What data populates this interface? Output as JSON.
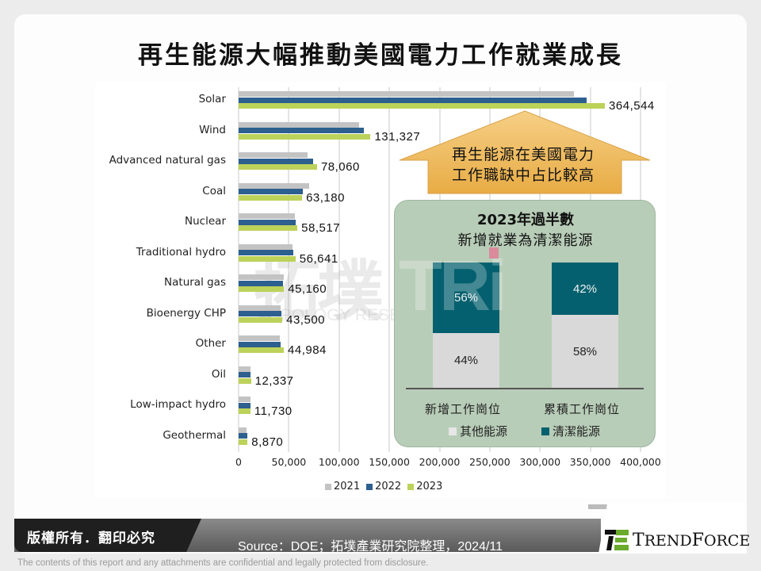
{
  "title": "再生能源大幅推動美國電力工作就業成長",
  "chart_data": [
    {
      "type": "bar",
      "orientation": "horizontal",
      "title": "",
      "xlabel": "",
      "ylabel": "",
      "categories": [
        "Solar",
        "Wind",
        "Advanced natural gas",
        "Coal",
        "Nuclear",
        "Traditional  hydro",
        "Natural gas",
        "Bioenergy CHP",
        "Other",
        "Oil",
        "Low-impact hydro",
        "Geothermal"
      ],
      "series": [
        {
          "name": "2021",
          "color": "#c3c3c3",
          "values": [
            334000,
            120000,
            69000,
            70000,
            56000,
            54000,
            45000,
            42000,
            41000,
            12000,
            12000,
            8000
          ]
        },
        {
          "name": "2022",
          "color": "#2d5f8f",
          "values": [
            346000,
            125000,
            74000,
            64000,
            57000,
            54500,
            44500,
            42500,
            42000,
            12000,
            11500,
            8500
          ]
        },
        {
          "name": "2023",
          "color": "#bcd25a",
          "values": [
            364544,
            131327,
            78060,
            63180,
            58517,
            56641,
            45160,
            43500,
            44984,
            12337,
            11730,
            8870
          ]
        }
      ],
      "data_labels_2023": [
        "364,544",
        "131,327",
        "78,060",
        "63,180",
        "58,517",
        "56,641",
        "45,160",
        "43,500",
        "44,984",
        "12,337",
        "11,730",
        "8,870"
      ],
      "xticks": [
        "0",
        "50,000",
        "100,000",
        "150,000",
        "200,000",
        "250,000",
        "300,000",
        "350,000",
        "400,000"
      ],
      "xlim": [
        0,
        400000
      ],
      "grid": true,
      "legend": [
        "2021",
        "2022",
        "2023"
      ],
      "legend_position": "bottom"
    },
    {
      "type": "bar",
      "stacked": true,
      "title": "2023年過半數 新增就業為清潔能源",
      "categories": [
        "新增工作崗位",
        "累積工作崗位"
      ],
      "series": [
        {
          "name": "其他能源",
          "color": "#d9d9d9",
          "values": [
            44,
            58
          ]
        },
        {
          "name": "清潔能源",
          "color": "#04606e",
          "values": [
            56,
            42
          ]
        }
      ],
      "unit": "%",
      "legend": [
        "其他能源",
        "清潔能源"
      ],
      "legend_position": "bottom"
    }
  ],
  "callout": {
    "line1": "再生能源在美國電力",
    "line2": "工作職缺中占比較高",
    "color": "#f0b95a"
  },
  "inset": {
    "title_line1": "2023年過半數",
    "title_line2": "新增就業為清潔能源",
    "bars": [
      {
        "category": "新增工作崗位",
        "clean_label": "56%",
        "other_label": "44%"
      },
      {
        "category": "累積工作崗位",
        "clean_label": "42%",
        "other_label": "58%"
      }
    ],
    "legend_other": "其他能源",
    "legend_clean": "清潔能源",
    "bg_color": "#b8cdb8"
  },
  "legend": {
    "y2021": "2021",
    "y2022": "2022",
    "y2023": "2023"
  },
  "watermark": {
    "cn": "拓墣",
    "en": "TOPOLOGY RESEARCH INSTITUTE",
    "tri": "TRi"
  },
  "footer": {
    "copyright": "版權所有．翻印必究",
    "source": "Source：DOE；拓墣產業研究院整理，2024/11",
    "logo": "TrendForce",
    "disclaimer": "The contents of this report and any attachments are confidential and legally protected from disclosure."
  }
}
